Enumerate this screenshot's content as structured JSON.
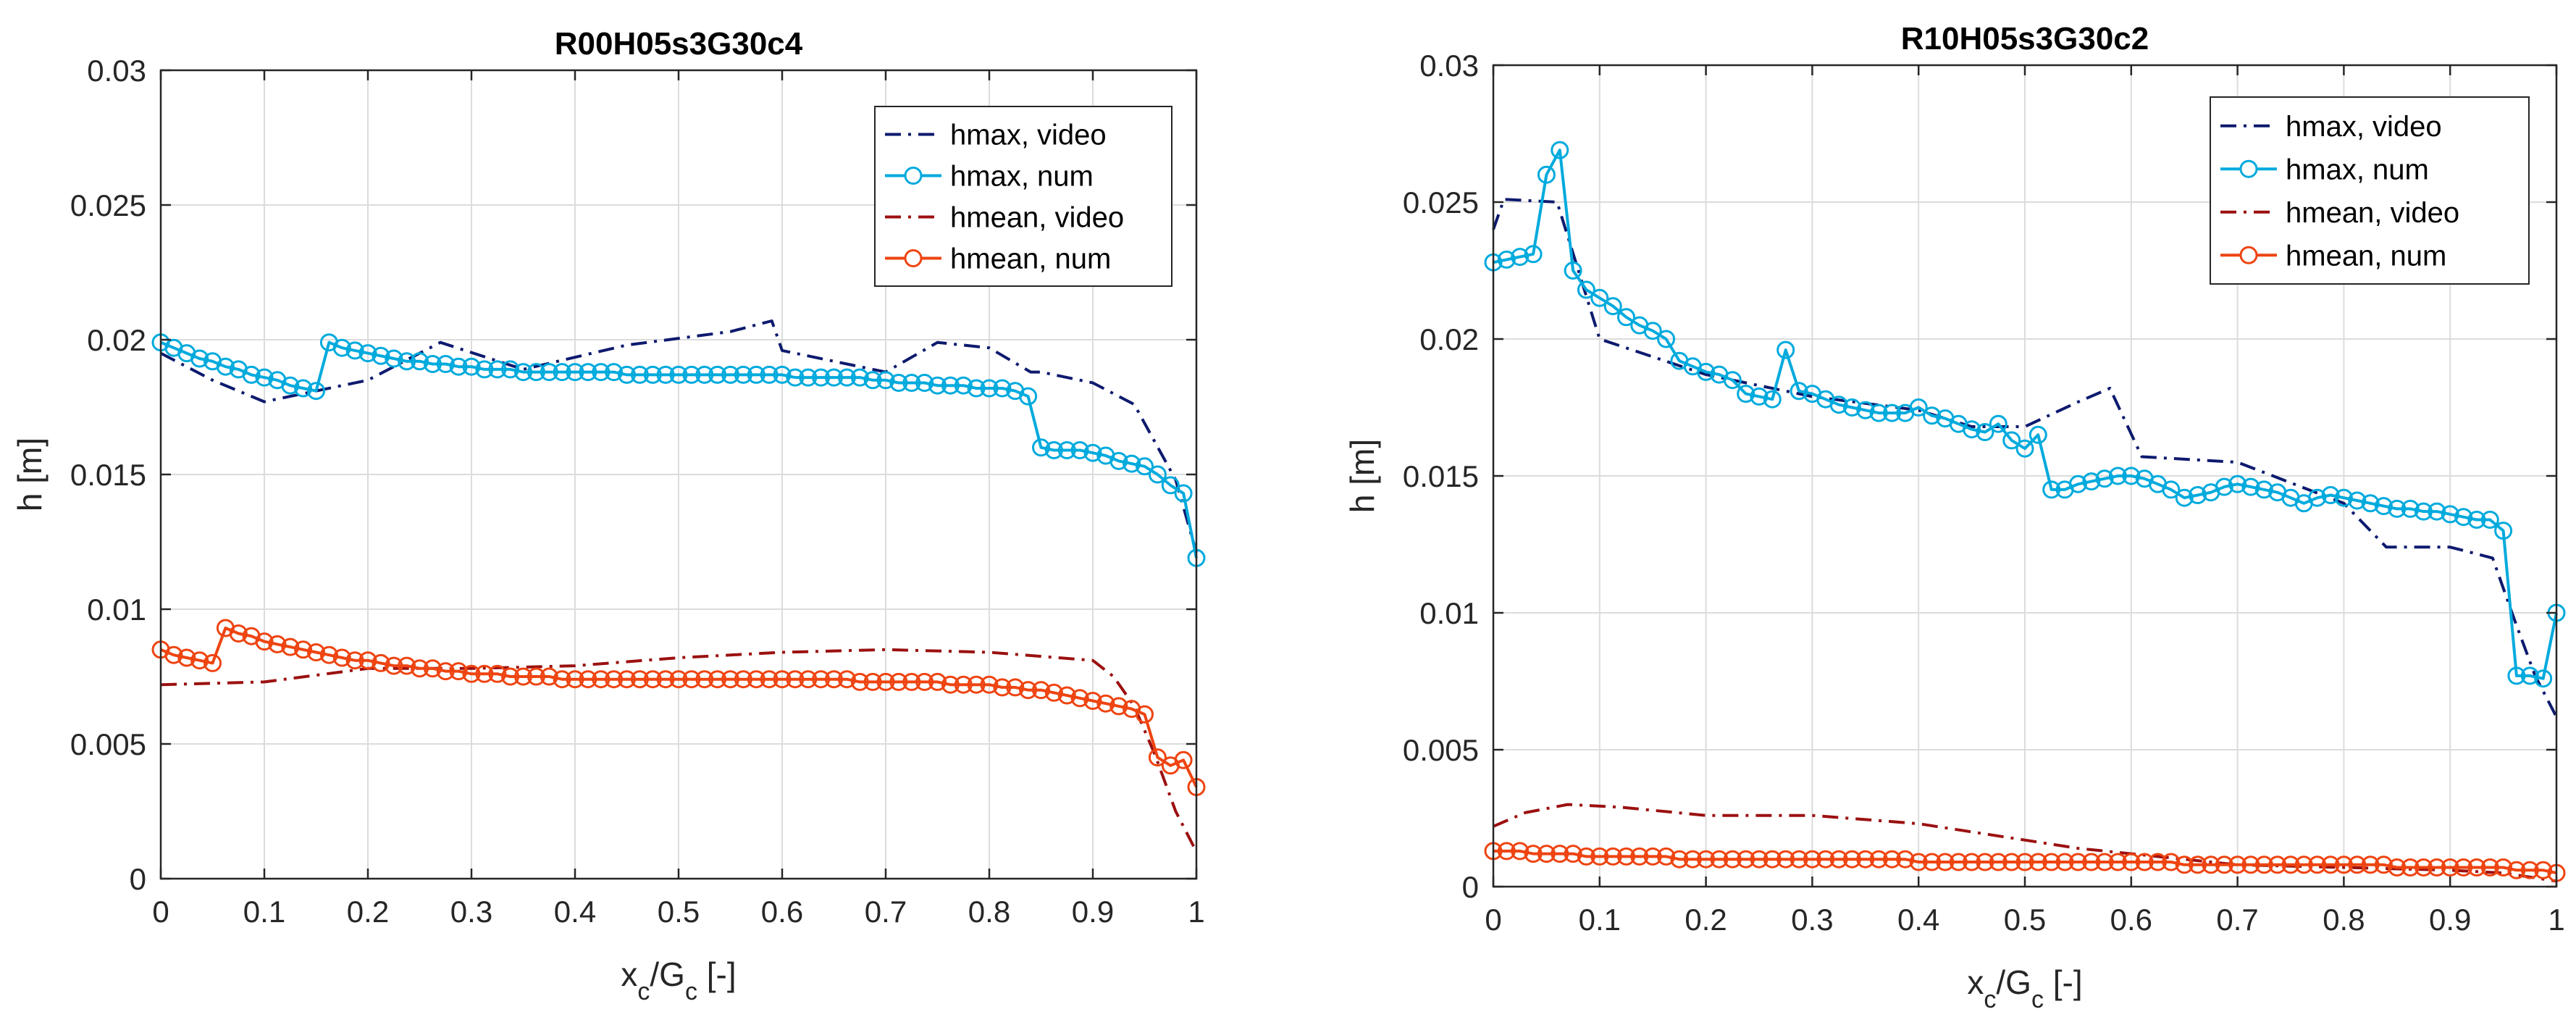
{
  "chart_data": [
    {
      "type": "line",
      "title": "R00H05s3G30c4",
      "xlabel": "x_c/G_c [-]",
      "ylabel": "h [m]",
      "xlim": [
        0,
        1
      ],
      "ylim": [
        0,
        0.03
      ],
      "xticks": [
        "0",
        "0.1",
        "0.2",
        "0.3",
        "0.4",
        "0.5",
        "0.6",
        "0.7",
        "0.8",
        "0.9",
        "1"
      ],
      "yticks": [
        "0",
        "0.005",
        "0.01",
        "0.015",
        "0.02",
        "0.025",
        "0.03"
      ],
      "grid": true,
      "legend_position": "top-right",
      "series": [
        {
          "name": "hmax, video",
          "color": "#0d1a6e",
          "style": "dashdot",
          "marker": "none",
          "x": [
            0,
            0.05,
            0.1,
            0.15,
            0.2,
            0.27,
            0.35,
            0.45,
            0.55,
            0.59,
            0.6,
            0.7,
            0.75,
            0.8,
            0.84,
            0.85,
            0.9,
            0.94,
            0.98,
            1
          ],
          "y": [
            0.0195,
            0.0185,
            0.0177,
            0.0181,
            0.0185,
            0.0199,
            0.0189,
            0.0198,
            0.0203,
            0.0207,
            0.0196,
            0.0188,
            0.0199,
            0.0197,
            0.0188,
            0.0188,
            0.0184,
            0.0176,
            0.0148,
            0.0121
          ]
        },
        {
          "name": "hmax, num",
          "color": "#00aadd",
          "style": "solid",
          "marker": "circle",
          "x": [
            0,
            0.0125,
            0.025,
            0.0375,
            0.05,
            0.0625,
            0.075,
            0.0875,
            0.1,
            0.1125,
            0.125,
            0.1375,
            0.15,
            0.1625,
            0.175,
            0.1875,
            0.2,
            0.2125,
            0.225,
            0.2375,
            0.25,
            0.2625,
            0.275,
            0.2875,
            0.3,
            0.3125,
            0.325,
            0.3375,
            0.35,
            0.3625,
            0.375,
            0.3875,
            0.4,
            0.4125,
            0.425,
            0.4375,
            0.45,
            0.4625,
            0.475,
            0.4875,
            0.5,
            0.5125,
            0.525,
            0.5375,
            0.55,
            0.5625,
            0.575,
            0.5875,
            0.6,
            0.6125,
            0.625,
            0.6375,
            0.65,
            0.6625,
            0.675,
            0.6875,
            0.7,
            0.7125,
            0.725,
            0.7375,
            0.75,
            0.7625,
            0.775,
            0.7875,
            0.8,
            0.8125,
            0.825,
            0.8375,
            0.85,
            0.8625,
            0.875,
            0.8875,
            0.9,
            0.9125,
            0.925,
            0.9375,
            0.95,
            0.9625,
            0.975,
            0.9875,
            1
          ],
          "y": [
            0.0199,
            0.0197,
            0.0195,
            0.0193,
            0.0192,
            0.019,
            0.0189,
            0.0187,
            0.0186,
            0.0185,
            0.0183,
            0.0182,
            0.0181,
            0.0199,
            0.0197,
            0.0196,
            0.0195,
            0.0194,
            0.0193,
            0.0192,
            0.0192,
            0.0191,
            0.0191,
            0.019,
            0.019,
            0.0189,
            0.0189,
            0.0189,
            0.0188,
            0.0188,
            0.0188,
            0.0188,
            0.0188,
            0.0188,
            0.0188,
            0.0188,
            0.0187,
            0.0187,
            0.0187,
            0.0187,
            0.0187,
            0.0187,
            0.0187,
            0.0187,
            0.0187,
            0.0187,
            0.0187,
            0.0187,
            0.0187,
            0.0186,
            0.0186,
            0.0186,
            0.0186,
            0.0186,
            0.0186,
            0.0185,
            0.0185,
            0.0184,
            0.0184,
            0.0184,
            0.0183,
            0.0183,
            0.0183,
            0.0182,
            0.0182,
            0.0182,
            0.0181,
            0.0179,
            0.016,
            0.0159,
            0.0159,
            0.0159,
            0.0158,
            0.0157,
            0.0155,
            0.0154,
            0.0153,
            0.015,
            0.0146,
            0.0143,
            0.0119
          ]
        },
        {
          "name": "hmean, video",
          "color": "#9b1010",
          "style": "dashdot",
          "marker": "none",
          "x": [
            0,
            0.1,
            0.2,
            0.3,
            0.4,
            0.5,
            0.6,
            0.7,
            0.8,
            0.9,
            0.92,
            0.94,
            0.96,
            0.98,
            1
          ],
          "y": [
            0.0072,
            0.0073,
            0.0078,
            0.0078,
            0.0079,
            0.0082,
            0.0084,
            0.0085,
            0.0084,
            0.0081,
            0.0075,
            0.0064,
            0.0046,
            0.0025,
            0.001
          ]
        },
        {
          "name": "hmean, num",
          "color": "#ee4411",
          "style": "solid",
          "marker": "circle",
          "x": [
            0,
            0.0125,
            0.025,
            0.0375,
            0.05,
            0.0625,
            0.075,
            0.0875,
            0.1,
            0.1125,
            0.125,
            0.1375,
            0.15,
            0.1625,
            0.175,
            0.1875,
            0.2,
            0.2125,
            0.225,
            0.2375,
            0.25,
            0.2625,
            0.275,
            0.2875,
            0.3,
            0.3125,
            0.325,
            0.3375,
            0.35,
            0.3625,
            0.375,
            0.3875,
            0.4,
            0.4125,
            0.425,
            0.4375,
            0.45,
            0.4625,
            0.475,
            0.4875,
            0.5,
            0.5125,
            0.525,
            0.5375,
            0.55,
            0.5625,
            0.575,
            0.5875,
            0.6,
            0.6125,
            0.625,
            0.6375,
            0.65,
            0.6625,
            0.675,
            0.6875,
            0.7,
            0.7125,
            0.725,
            0.7375,
            0.75,
            0.7625,
            0.775,
            0.7875,
            0.8,
            0.8125,
            0.825,
            0.8375,
            0.85,
            0.8625,
            0.875,
            0.8875,
            0.9,
            0.9125,
            0.925,
            0.9375,
            0.95,
            0.9625,
            0.975,
            0.9875,
            1
          ],
          "y": [
            0.0085,
            0.0083,
            0.0082,
            0.0081,
            0.008,
            0.0093,
            0.0091,
            0.009,
            0.0088,
            0.0087,
            0.0086,
            0.0085,
            0.0084,
            0.0083,
            0.0082,
            0.0081,
            0.0081,
            0.008,
            0.0079,
            0.0079,
            0.0078,
            0.0078,
            0.0077,
            0.0077,
            0.0076,
            0.0076,
            0.0076,
            0.0075,
            0.0075,
            0.0075,
            0.0075,
            0.0074,
            0.0074,
            0.0074,
            0.0074,
            0.0074,
            0.0074,
            0.0074,
            0.0074,
            0.0074,
            0.0074,
            0.0074,
            0.0074,
            0.0074,
            0.0074,
            0.0074,
            0.0074,
            0.0074,
            0.0074,
            0.0074,
            0.0074,
            0.0074,
            0.0074,
            0.0074,
            0.0073,
            0.0073,
            0.0073,
            0.0073,
            0.0073,
            0.0073,
            0.0073,
            0.0072,
            0.0072,
            0.0072,
            0.0072,
            0.0071,
            0.0071,
            0.007,
            0.007,
            0.0069,
            0.0068,
            0.0067,
            0.0066,
            0.0065,
            0.0064,
            0.0063,
            0.0061,
            0.0045,
            0.0042,
            0.0044,
            0.0034
          ]
        }
      ]
    },
    {
      "type": "line",
      "title": "R10H05s3G30c2",
      "xlabel": "x_c/G_c [-]",
      "ylabel": "h [m]",
      "xlim": [
        0,
        1
      ],
      "ylim": [
        0,
        0.03
      ],
      "xticks": [
        "0",
        "0.1",
        "0.2",
        "0.3",
        "0.4",
        "0.5",
        "0.6",
        "0.7",
        "0.8",
        "0.9",
        "1"
      ],
      "yticks": [
        "0",
        "0.005",
        "0.01",
        "0.015",
        "0.02",
        "0.025",
        "0.03"
      ],
      "grid": true,
      "legend_position": "top-right",
      "series": [
        {
          "name": "hmax, video",
          "color": "#0d1a6e",
          "style": "dashdot",
          "marker": "none",
          "x": [
            0,
            0.01,
            0.06,
            0.1,
            0.2,
            0.3,
            0.4,
            0.45,
            0.5,
            0.55,
            0.58,
            0.61,
            0.7,
            0.8,
            0.84,
            0.9,
            0.94,
            0.96,
            0.98,
            1
          ],
          "y": [
            0.024,
            0.0251,
            0.025,
            0.02,
            0.0187,
            0.0179,
            0.0174,
            0.0168,
            0.0168,
            0.0177,
            0.0182,
            0.0157,
            0.0155,
            0.014,
            0.0124,
            0.0124,
            0.012,
            0.0098,
            0.0077,
            0.0062
          ]
        },
        {
          "name": "hmax, num",
          "color": "#00aadd",
          "style": "solid",
          "marker": "circle",
          "x": [
            0,
            0.0125,
            0.025,
            0.0375,
            0.05,
            0.0625,
            0.075,
            0.0875,
            0.1,
            0.1125,
            0.125,
            0.1375,
            0.15,
            0.1625,
            0.175,
            0.1875,
            0.2,
            0.2125,
            0.225,
            0.2375,
            0.25,
            0.2625,
            0.275,
            0.2875,
            0.3,
            0.3125,
            0.325,
            0.3375,
            0.35,
            0.3625,
            0.375,
            0.3875,
            0.4,
            0.4125,
            0.425,
            0.4375,
            0.45,
            0.4625,
            0.475,
            0.4875,
            0.5,
            0.5125,
            0.525,
            0.5375,
            0.55,
            0.5625,
            0.575,
            0.5875,
            0.6,
            0.6125,
            0.625,
            0.6375,
            0.65,
            0.6625,
            0.675,
            0.6875,
            0.7,
            0.7125,
            0.725,
            0.7375,
            0.75,
            0.7625,
            0.775,
            0.7875,
            0.8,
            0.8125,
            0.825,
            0.8375,
            0.85,
            0.8625,
            0.875,
            0.8875,
            0.9,
            0.9125,
            0.925,
            0.9375,
            0.95,
            0.9625,
            0.975,
            0.9875,
            1
          ],
          "y": [
            0.0228,
            0.0229,
            0.023,
            0.0231,
            0.026,
            0.0269,
            0.0225,
            0.0218,
            0.0215,
            0.0212,
            0.0208,
            0.0205,
            0.0203,
            0.02,
            0.0192,
            0.019,
            0.0188,
            0.0187,
            0.0185,
            0.018,
            0.0179,
            0.0178,
            0.0196,
            0.0181,
            0.018,
            0.0178,
            0.0176,
            0.0175,
            0.0174,
            0.0173,
            0.0173,
            0.0173,
            0.0175,
            0.0172,
            0.0171,
            0.0169,
            0.0167,
            0.0166,
            0.0169,
            0.0163,
            0.016,
            0.0165,
            0.0145,
            0.0145,
            0.0147,
            0.0148,
            0.0149,
            0.015,
            0.015,
            0.0149,
            0.0147,
            0.0145,
            0.0142,
            0.0143,
            0.0144,
            0.0146,
            0.0147,
            0.0146,
            0.0145,
            0.0144,
            0.0142,
            0.014,
            0.0142,
            0.0143,
            0.0142,
            0.0141,
            0.014,
            0.0139,
            0.0138,
            0.0138,
            0.0137,
            0.0137,
            0.0136,
            0.0135,
            0.0134,
            0.0134,
            0.013,
            0.0077,
            0.0077,
            0.0076,
            0.01
          ]
        },
        {
          "name": "hmean, video",
          "color": "#9b1010",
          "style": "dashdot",
          "marker": "none",
          "x": [
            0,
            0.03,
            0.07,
            0.12,
            0.2,
            0.3,
            0.4,
            0.5,
            0.55,
            0.6,
            0.7,
            0.8,
            0.9,
            0.95,
            1
          ],
          "y": [
            0.0022,
            0.0027,
            0.003,
            0.0029,
            0.0026,
            0.0026,
            0.0023,
            0.0017,
            0.0014,
            0.0012,
            0.0008,
            0.0007,
            0.0006,
            0.0005,
            0.0002
          ]
        },
        {
          "name": "hmean, num",
          "color": "#ee4411",
          "style": "solid",
          "marker": "circle",
          "x": [
            0,
            0.0125,
            0.025,
            0.0375,
            0.05,
            0.0625,
            0.075,
            0.0875,
            0.1,
            0.1125,
            0.125,
            0.1375,
            0.15,
            0.1625,
            0.175,
            0.1875,
            0.2,
            0.2125,
            0.225,
            0.2375,
            0.25,
            0.2625,
            0.275,
            0.2875,
            0.3,
            0.3125,
            0.325,
            0.3375,
            0.35,
            0.3625,
            0.375,
            0.3875,
            0.4,
            0.4125,
            0.425,
            0.4375,
            0.45,
            0.4625,
            0.475,
            0.4875,
            0.5,
            0.5125,
            0.525,
            0.5375,
            0.55,
            0.5625,
            0.575,
            0.5875,
            0.6,
            0.6125,
            0.625,
            0.6375,
            0.65,
            0.6625,
            0.675,
            0.6875,
            0.7,
            0.7125,
            0.725,
            0.7375,
            0.75,
            0.7625,
            0.775,
            0.7875,
            0.8,
            0.8125,
            0.825,
            0.8375,
            0.85,
            0.8625,
            0.875,
            0.8875,
            0.9,
            0.9125,
            0.925,
            0.9375,
            0.95,
            0.9625,
            0.975,
            0.9875,
            1
          ],
          "y": [
            0.0013,
            0.0013,
            0.0013,
            0.0012,
            0.0012,
            0.0012,
            0.0012,
            0.0011,
            0.0011,
            0.0011,
            0.0011,
            0.0011,
            0.0011,
            0.0011,
            0.001,
            0.001,
            0.001,
            0.001,
            0.001,
            0.001,
            0.001,
            0.001,
            0.001,
            0.001,
            0.001,
            0.001,
            0.001,
            0.001,
            0.001,
            0.001,
            0.001,
            0.001,
            0.0009,
            0.0009,
            0.0009,
            0.0009,
            0.0009,
            0.0009,
            0.0009,
            0.0009,
            0.0009,
            0.0009,
            0.0009,
            0.0009,
            0.0009,
            0.0009,
            0.0009,
            0.0009,
            0.0009,
            0.0009,
            0.0009,
            0.0009,
            0.0008,
            0.0008,
            0.0008,
            0.0008,
            0.0008,
            0.0008,
            0.0008,
            0.0008,
            0.0008,
            0.0008,
            0.0008,
            0.0008,
            0.0008,
            0.0008,
            0.0008,
            0.0008,
            0.0007,
            0.0007,
            0.0007,
            0.0007,
            0.0007,
            0.0007,
            0.0007,
            0.0007,
            0.0007,
            0.0006,
            0.0006,
            0.0006,
            0.0005
          ]
        }
      ]
    }
  ]
}
